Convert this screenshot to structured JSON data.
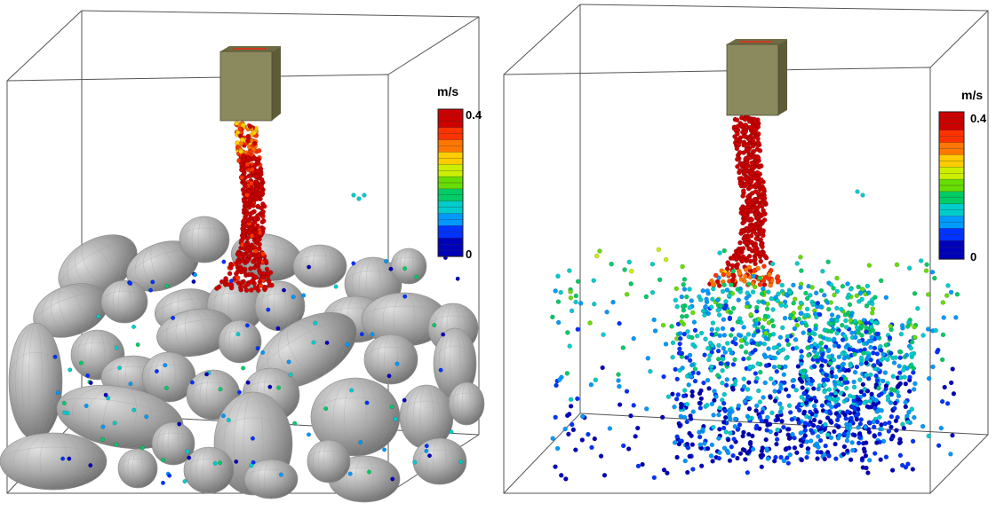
{
  "panels": [
    {
      "id": "left",
      "content": "particle stream falling onto a bed of large grey ellipsoids"
    },
    {
      "id": "right",
      "content": "particle stream spreading through the container after large bodies removed"
    }
  ],
  "colorbar": {
    "unit": "m/s",
    "max_label": "0.4",
    "min_label": "0",
    "colors": [
      "#cc0000",
      "#ff3300",
      "#ff7700",
      "#ffcc00",
      "#ccee00",
      "#66dd00",
      "#00cc66",
      "#00cccc",
      "#0099ff",
      "#0033ff",
      "#0000bb"
    ]
  },
  "colors": {
    "frame_line": "#555555",
    "hopper": "#8b8a5e",
    "hopper_dark": "#5e5c38",
    "ellipsoid": "#a9a9a9",
    "background": "#ffffff"
  }
}
